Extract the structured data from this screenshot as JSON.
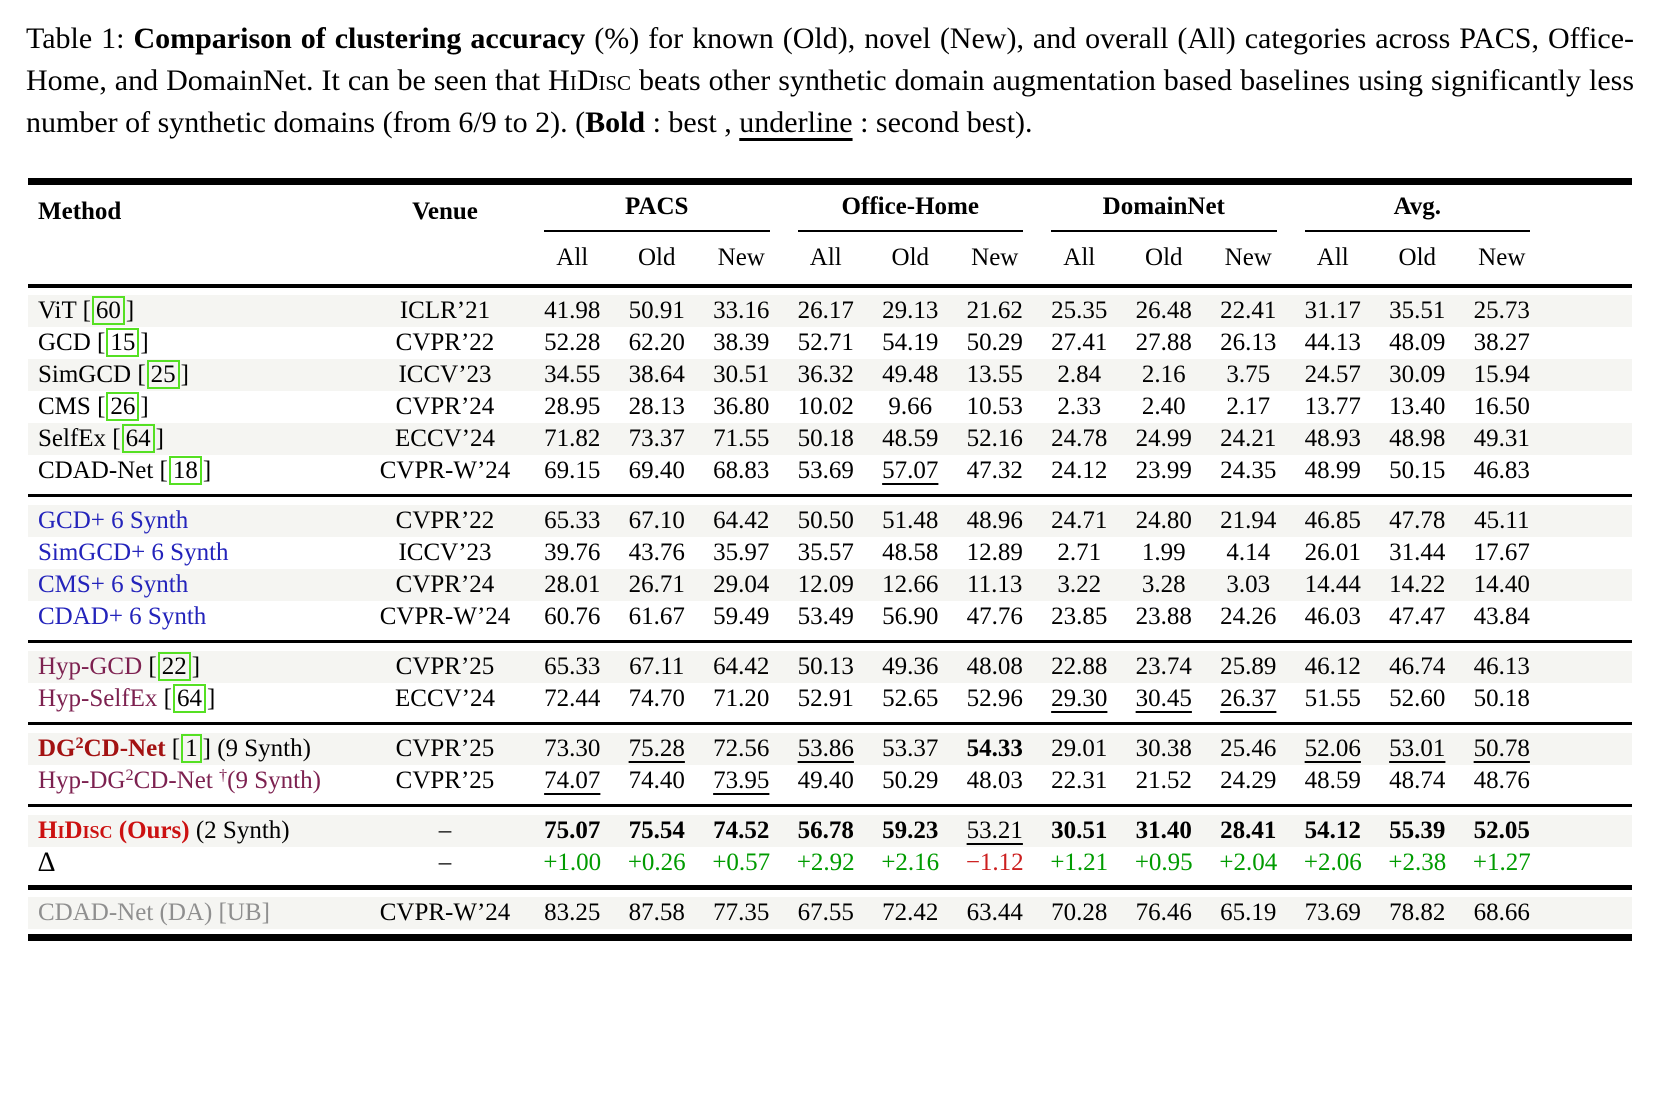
{
  "caption": {
    "segments": [
      {
        "t": "Table 1: "
      },
      {
        "t": "Comparison of clustering accuracy",
        "b": 1
      },
      {
        "t": " (%) for known (Old), novel (New), and overall (All) categories across PACS, Office-Home, and DomainNet. It can be seen that "
      },
      {
        "t": "HiDisc",
        "sc": 1
      },
      {
        "t": " beats other synthetic domain augmentation based baselines using significantly less number of synthetic domains (from 6/9 to 2). ("
      },
      {
        "t": "Bold",
        "b": 1
      },
      {
        "t": " : best , "
      },
      {
        "t": "underline",
        "u": 1
      },
      {
        "t": " : second best)."
      }
    ]
  },
  "colors": {
    "stripe": "#f5f5f2",
    "method_blue": "#2323bb",
    "method_maroon": "#7d2150",
    "method_darkred": "#a31212",
    "ours_red": "#cc1111",
    "delta_positive_green": "#009b00",
    "delta_negative_red": "#cc1f1f",
    "citation_box_green": "#55e023"
  },
  "table": {
    "method_header": "Method",
    "venue_header": "Venue",
    "groups": [
      "PACS",
      "Office-Home",
      "DomainNet",
      "Avg."
    ],
    "subcols": [
      "All",
      "Old",
      "New"
    ],
    "blocks": [
      {
        "rows": [
          {
            "shade": true,
            "method": [
              {
                "t": "ViT "
              },
              {
                "cite": "60"
              }
            ],
            "venue": "ICLR’21",
            "cells": [
              [
                "41.98"
              ],
              [
                "50.91"
              ],
              [
                "33.16"
              ],
              [
                "26.17"
              ],
              [
                "29.13"
              ],
              [
                "21.62"
              ],
              [
                "25.35"
              ],
              [
                "26.48"
              ],
              [
                "22.41"
              ],
              [
                "31.17"
              ],
              [
                "35.51"
              ],
              [
                "25.73"
              ]
            ]
          },
          {
            "shade": false,
            "method": [
              {
                "t": "GCD "
              },
              {
                "cite": "15"
              }
            ],
            "venue": "CVPR’22",
            "cells": [
              [
                "52.28"
              ],
              [
                "62.20"
              ],
              [
                "38.39"
              ],
              [
                "52.71"
              ],
              [
                "54.19"
              ],
              [
                "50.29"
              ],
              [
                "27.41"
              ],
              [
                "27.88"
              ],
              [
                "26.13"
              ],
              [
                "44.13"
              ],
              [
                "48.09"
              ],
              [
                "38.27"
              ]
            ]
          },
          {
            "shade": true,
            "method": [
              {
                "t": "SimGCD "
              },
              {
                "cite": "25"
              }
            ],
            "venue": "ICCV’23",
            "cells": [
              [
                "34.55"
              ],
              [
                "38.64"
              ],
              [
                "30.51"
              ],
              [
                "36.32"
              ],
              [
                "49.48"
              ],
              [
                "13.55"
              ],
              [
                "2.84"
              ],
              [
                "2.16"
              ],
              [
                "3.75"
              ],
              [
                "24.57"
              ],
              [
                "30.09"
              ],
              [
                "15.94"
              ]
            ]
          },
          {
            "shade": false,
            "method": [
              {
                "t": "CMS "
              },
              {
                "cite": "26"
              }
            ],
            "venue": "CVPR’24",
            "cells": [
              [
                "28.95"
              ],
              [
                "28.13"
              ],
              [
                "36.80"
              ],
              [
                "10.02"
              ],
              [
                "9.66"
              ],
              [
                "10.53"
              ],
              [
                "2.33"
              ],
              [
                "2.40"
              ],
              [
                "2.17"
              ],
              [
                "13.77"
              ],
              [
                "13.40"
              ],
              [
                "16.50"
              ]
            ]
          },
          {
            "shade": true,
            "method": [
              {
                "t": "SelfEx "
              },
              {
                "cite": "64"
              }
            ],
            "venue": "ECCV’24",
            "cells": [
              [
                "71.82"
              ],
              [
                "73.37"
              ],
              [
                "71.55"
              ],
              [
                "50.18"
              ],
              [
                "48.59"
              ],
              [
                "52.16"
              ],
              [
                "24.78"
              ],
              [
                "24.99"
              ],
              [
                "24.21"
              ],
              [
                "48.93"
              ],
              [
                "48.98"
              ],
              [
                "49.31"
              ]
            ]
          },
          {
            "shade": false,
            "method": [
              {
                "t": "CDAD-Net "
              },
              {
                "cite": "18"
              }
            ],
            "venue": "CVPR-W’24",
            "cells": [
              [
                "69.15"
              ],
              [
                "69.40"
              ],
              [
                "68.83"
              ],
              [
                "53.69"
              ],
              [
                "57.07",
                "u"
              ],
              [
                "47.32"
              ],
              [
                "24.12"
              ],
              [
                "23.99"
              ],
              [
                "24.35"
              ],
              [
                "48.99"
              ],
              [
                "50.15"
              ],
              [
                "46.83"
              ]
            ]
          }
        ]
      },
      {
        "rows": [
          {
            "shade": true,
            "method": [
              {
                "t": "GCD+ 6 Synth",
                "c": "blue"
              }
            ],
            "venue": "CVPR’22",
            "cells": [
              [
                "65.33"
              ],
              [
                "67.10"
              ],
              [
                "64.42"
              ],
              [
                "50.50"
              ],
              [
                "51.48"
              ],
              [
                "48.96"
              ],
              [
                "24.71"
              ],
              [
                "24.80"
              ],
              [
                "21.94"
              ],
              [
                "46.85"
              ],
              [
                "47.78"
              ],
              [
                "45.11"
              ]
            ]
          },
          {
            "shade": false,
            "method": [
              {
                "t": "SimGCD+ 6 Synth",
                "c": "blue"
              }
            ],
            "venue": "ICCV’23",
            "cells": [
              [
                "39.76"
              ],
              [
                "43.76"
              ],
              [
                "35.97"
              ],
              [
                "35.57"
              ],
              [
                "48.58"
              ],
              [
                "12.89"
              ],
              [
                "2.71"
              ],
              [
                "1.99"
              ],
              [
                "4.14"
              ],
              [
                "26.01"
              ],
              [
                "31.44"
              ],
              [
                "17.67"
              ]
            ]
          },
          {
            "shade": true,
            "method": [
              {
                "t": "CMS+ 6 Synth",
                "c": "blue"
              }
            ],
            "venue": "CVPR’24",
            "cells": [
              [
                "28.01"
              ],
              [
                "26.71"
              ],
              [
                "29.04"
              ],
              [
                "12.09"
              ],
              [
                "12.66"
              ],
              [
                "11.13"
              ],
              [
                "3.22"
              ],
              [
                "3.28"
              ],
              [
                "3.03"
              ],
              [
                "14.44"
              ],
              [
                "14.22"
              ],
              [
                "14.40"
              ]
            ]
          },
          {
            "shade": false,
            "method": [
              {
                "t": "CDAD+ 6 Synth",
                "c": "blue"
              }
            ],
            "venue": "CVPR-W’24",
            "cells": [
              [
                "60.76"
              ],
              [
                "61.67"
              ],
              [
                "59.49"
              ],
              [
                "53.49"
              ],
              [
                "56.90"
              ],
              [
                "47.76"
              ],
              [
                "23.85"
              ],
              [
                "23.88"
              ],
              [
                "24.26"
              ],
              [
                "46.03"
              ],
              [
                "47.47"
              ],
              [
                "43.84"
              ]
            ]
          }
        ]
      },
      {
        "rows": [
          {
            "shade": true,
            "method": [
              {
                "t": "Hyp-GCD ",
                "c": "maroon"
              },
              {
                "cite": "22"
              }
            ],
            "venue": "CVPR’25",
            "cells": [
              [
                "65.33"
              ],
              [
                "67.11"
              ],
              [
                "64.42"
              ],
              [
                "50.13"
              ],
              [
                "49.36"
              ],
              [
                "48.08"
              ],
              [
                "22.88"
              ],
              [
                "23.74"
              ],
              [
                "25.89"
              ],
              [
                "46.12"
              ],
              [
                "46.74"
              ],
              [
                "46.13"
              ]
            ]
          },
          {
            "shade": false,
            "method": [
              {
                "t": "Hyp-SelfEx ",
                "c": "maroon"
              },
              {
                "cite": "64"
              }
            ],
            "venue": "ECCV’24",
            "cells": [
              [
                "72.44"
              ],
              [
                "74.70"
              ],
              [
                "71.20"
              ],
              [
                "52.91"
              ],
              [
                "52.65"
              ],
              [
                "52.96"
              ],
              [
                "29.30",
                "u"
              ],
              [
                "30.45",
                "u"
              ],
              [
                "26.37",
                "u"
              ],
              [
                "51.55"
              ],
              [
                "52.60"
              ],
              [
                "50.18"
              ]
            ]
          }
        ]
      },
      {
        "rows": [
          {
            "shade": true,
            "method": [
              {
                "t": "DG",
                "b": 1,
                "c": "darkred"
              },
              {
                "t": "2",
                "b": 1,
                "c": "darkred",
                "sup": 1
              },
              {
                "t": "CD-Net",
                "b": 1,
                "c": "darkred"
              },
              {
                "t": " "
              },
              {
                "cite": "1"
              },
              {
                "t": " (9 Synth)"
              }
            ],
            "venue": "CVPR’25",
            "cells": [
              [
                "73.30"
              ],
              [
                "75.28",
                "u"
              ],
              [
                "72.56"
              ],
              [
                "53.86",
                "u"
              ],
              [
                "53.37"
              ],
              [
                "54.33",
                "b"
              ],
              [
                "29.01"
              ],
              [
                "30.38"
              ],
              [
                "25.46"
              ],
              [
                "52.06",
                "u"
              ],
              [
                "53.01",
                "u"
              ],
              [
                "50.78",
                "u"
              ]
            ]
          },
          {
            "shade": false,
            "method": [
              {
                "t": "Hyp-DG",
                "c": "maroon"
              },
              {
                "t": "2",
                "c": "maroon",
                "sup": 1
              },
              {
                "t": "CD-Net ",
                "c": "maroon"
              },
              {
                "t": "†",
                "c": "maroon",
                "sup": 1
              },
              {
                "t": "(9 Synth)",
                "c": "maroon"
              }
            ],
            "venue": "CVPR’25",
            "cells": [
              [
                "74.07",
                "u"
              ],
              [
                "74.40"
              ],
              [
                "73.95",
                "u"
              ],
              [
                "49.40"
              ],
              [
                "50.29"
              ],
              [
                "48.03"
              ],
              [
                "22.31"
              ],
              [
                "21.52"
              ],
              [
                "24.29"
              ],
              [
                "48.59"
              ],
              [
                "48.74"
              ],
              [
                "48.76"
              ]
            ]
          }
        ]
      },
      {
        "rows": [
          {
            "shade": true,
            "method": [
              {
                "t": "HiDisc",
                "b": 1,
                "c": "red",
                "sc": 1
              },
              {
                "t": " (Ours)",
                "b": 1,
                "c": "red"
              },
              {
                "t": " (2 Synth)"
              }
            ],
            "venue": "–",
            "cells": [
              [
                "75.07",
                "b"
              ],
              [
                "75.54",
                "b"
              ],
              [
                "74.52",
                "b"
              ],
              [
                "56.78",
                "b"
              ],
              [
                "59.23",
                "b"
              ],
              [
                "53.21",
                "u"
              ],
              [
                "30.51",
                "b"
              ],
              [
                "31.40",
                "b"
              ],
              [
                "28.41",
                "b"
              ],
              [
                "54.12",
                "b"
              ],
              [
                "55.39",
                "b"
              ],
              [
                "52.05",
                "b"
              ]
            ]
          },
          {
            "shade": false,
            "method": [
              {
                "t": "∆",
                "delta": 1
              }
            ],
            "venue": "–",
            "cells": [
              [
                "+1.00",
                "g"
              ],
              [
                "+0.26",
                "g"
              ],
              [
                "+0.57",
                "g"
              ],
              [
                "+2.92",
                "g"
              ],
              [
                "+2.16",
                "g"
              ],
              [
                "−1.12",
                "r"
              ],
              [
                "+1.21",
                "g"
              ],
              [
                "+0.95",
                "g"
              ],
              [
                "+2.04",
                "g"
              ],
              [
                "+2.06",
                "g"
              ],
              [
                "+2.38",
                "g"
              ],
              [
                "+1.27",
                "g"
              ]
            ]
          }
        ]
      },
      {
        "thick": true,
        "rows": [
          {
            "shade": true,
            "method": [
              {
                "t": "CDAD-Net (DA) [UB]",
                "c": "gray"
              }
            ],
            "venue": "CVPR-W’24",
            "cells": [
              [
                "83.25"
              ],
              [
                "87.58"
              ],
              [
                "77.35"
              ],
              [
                "67.55"
              ],
              [
                "72.42"
              ],
              [
                "63.44"
              ],
              [
                "70.28"
              ],
              [
                "76.46"
              ],
              [
                "65.19"
              ],
              [
                "73.69"
              ],
              [
                "78.82"
              ],
              [
                "68.66"
              ]
            ]
          }
        ]
      }
    ]
  }
}
